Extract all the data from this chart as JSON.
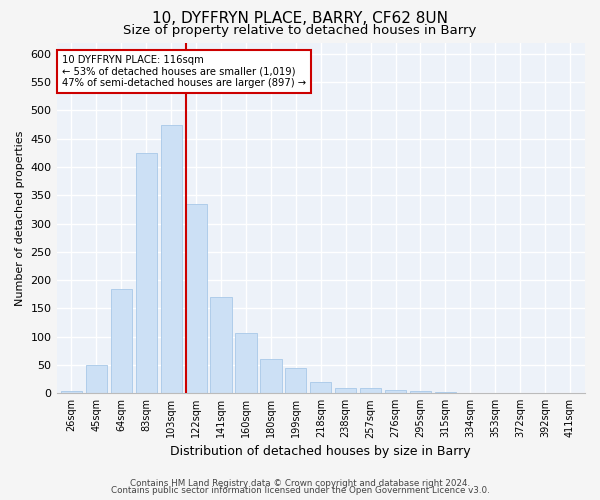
{
  "title1": "10, DYFFRYN PLACE, BARRY, CF62 8UN",
  "title2": "Size of property relative to detached houses in Barry",
  "xlabel": "Distribution of detached houses by size in Barry",
  "ylabel": "Number of detached properties",
  "categories": [
    "26sqm",
    "45sqm",
    "64sqm",
    "83sqm",
    "103sqm",
    "122sqm",
    "141sqm",
    "160sqm",
    "180sqm",
    "199sqm",
    "218sqm",
    "238sqm",
    "257sqm",
    "276sqm",
    "295sqm",
    "315sqm",
    "334sqm",
    "353sqm",
    "372sqm",
    "392sqm",
    "411sqm"
  ],
  "values": [
    3,
    50,
    185,
    425,
    475,
    335,
    170,
    107,
    60,
    45,
    20,
    10,
    10,
    5,
    3,
    2,
    1,
    1,
    1,
    1,
    1
  ],
  "bar_color": "#cce0f5",
  "bar_edge_color": "#a8c8e8",
  "vline_color": "#cc0000",
  "vline_x": 4.58,
  "annotation_line1": "10 DYFFRYN PLACE: 116sqm",
  "annotation_line2": "← 53% of detached houses are smaller (1,019)",
  "annotation_line3": "47% of semi-detached houses are larger (897) →",
  "annotation_box_facecolor": "#ffffff",
  "annotation_box_edgecolor": "#cc0000",
  "ylim": [
    0,
    620
  ],
  "yticks": [
    0,
    50,
    100,
    150,
    200,
    250,
    300,
    350,
    400,
    450,
    500,
    550,
    600
  ],
  "footer1": "Contains HM Land Registry data © Crown copyright and database right 2024.",
  "footer2": "Contains public sector information licensed under the Open Government Licence v3.0.",
  "fig_facecolor": "#f5f5f5",
  "axes_facecolor": "#edf2f9",
  "grid_color": "#ffffff",
  "title1_fontsize": 11,
  "title2_fontsize": 9.5,
  "bar_label_fontsize": 7.5,
  "ylabel_fontsize": 8,
  "xlabel_fontsize": 9
}
